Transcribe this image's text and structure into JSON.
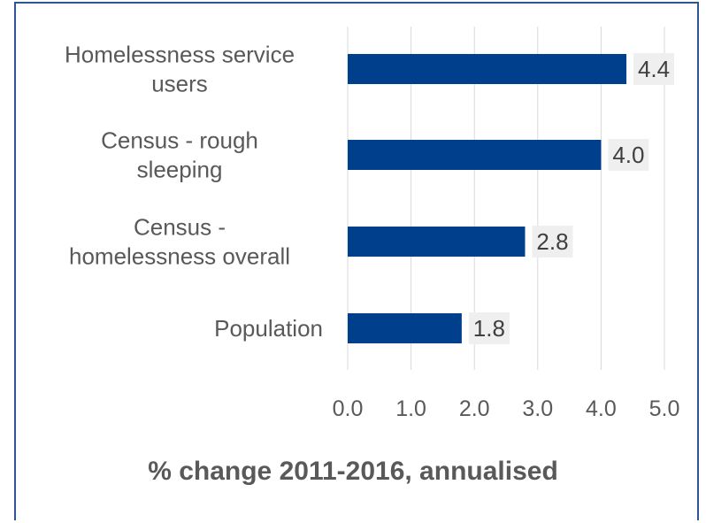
{
  "chart_data": {
    "type": "bar",
    "orientation": "horizontal",
    "categories": [
      [
        "Homelessness service",
        "users"
      ],
      [
        "Census - rough",
        "sleeping"
      ],
      [
        "Census -",
        "homelessness overall"
      ],
      [
        "Population"
      ]
    ],
    "values": [
      4.4,
      4.0,
      2.8,
      1.8
    ],
    "value_labels": [
      "4.4",
      "4.0",
      "2.8",
      "1.8"
    ],
    "xlabel": "% change 2011-2016, annualised",
    "xlim": [
      0,
      5
    ],
    "x_ticks": [
      "0.0",
      "1.0",
      "2.0",
      "3.0",
      "4.0",
      "5.0"
    ],
    "grid": true,
    "legend": "none",
    "bar_color": "#003f8c",
    "label_box_color": "#efefef",
    "frame_color": "#2f5597"
  }
}
